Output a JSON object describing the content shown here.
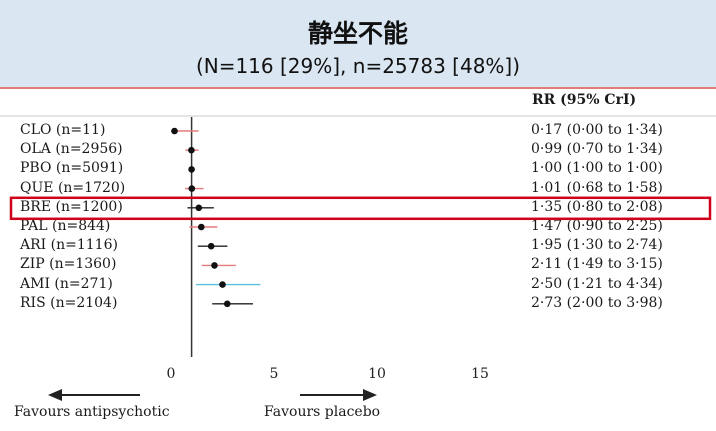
{
  "title": "静坐不能",
  "subtitle": "(N=116 [29%], n=25783 [48%])",
  "column_header": "RR (95% CrI)",
  "footer": {
    "left_label": "Favours antipsychotic",
    "right_label": "Favours placebo"
  },
  "colors": {
    "header_bg": "#dae6f1",
    "highlight": "#d0021b",
    "ci_red": "#e57a7a",
    "ci_blue": "#5bc0de",
    "ci_black": "#222222"
  },
  "chart_data": {
    "type": "forest",
    "x_ticks": [
      "0",
      "5",
      "10",
      "15"
    ],
    "xlim": [
      -0.8,
      17.3
    ],
    "reference_line": 1,
    "highlighted_row": "BRE (n=1200)",
    "rows": [
      {
        "label": "CLO (n=11)",
        "rr": 0.17,
        "low": 0.0,
        "high": 1.34,
        "text": "0·17 (0·00 to 1·34)",
        "ci_color": "red"
      },
      {
        "label": "OLA (n=2956)",
        "rr": 0.99,
        "low": 0.7,
        "high": 1.34,
        "text": "0·99 (0·70 to 1·34)",
        "ci_color": "red"
      },
      {
        "label": "PBO (n=5091)",
        "rr": 1.0,
        "low": 1.0,
        "high": 1.0,
        "text": "1·00 (1·00 to 1·00)",
        "ci_color": "black"
      },
      {
        "label": "QUE (n=1720)",
        "rr": 1.01,
        "low": 0.68,
        "high": 1.58,
        "text": "1·01 (0·68 to 1·58)",
        "ci_color": "red"
      },
      {
        "label": "BRE (n=1200)",
        "rr": 1.35,
        "low": 0.8,
        "high": 2.08,
        "text": "1·35 (0·80 to 2·08)",
        "ci_color": "black"
      },
      {
        "label": "PAL (n=844)",
        "rr": 1.47,
        "low": 0.9,
        "high": 2.25,
        "text": "1·47 (0·90 to 2·25)",
        "ci_color": "red"
      },
      {
        "label": "ARI (n=1116)",
        "rr": 1.95,
        "low": 1.3,
        "high": 2.74,
        "text": "1·95 (1·30 to 2·74)",
        "ci_color": "black"
      },
      {
        "label": "ZIP (n=1360)",
        "rr": 2.11,
        "low": 1.49,
        "high": 3.15,
        "text": "2·11 (1·49 to 3·15)",
        "ci_color": "red"
      },
      {
        "label": "AMI (n=271)",
        "rr": 2.5,
        "low": 1.21,
        "high": 4.34,
        "text": "2·50 (1·21 to 4·34)",
        "ci_color": "blue"
      },
      {
        "label": "RIS (n=2104)",
        "rr": 2.73,
        "low": 2.0,
        "high": 3.98,
        "text": "2·73 (2·00 to 3·98)",
        "ci_color": "black"
      }
    ]
  }
}
